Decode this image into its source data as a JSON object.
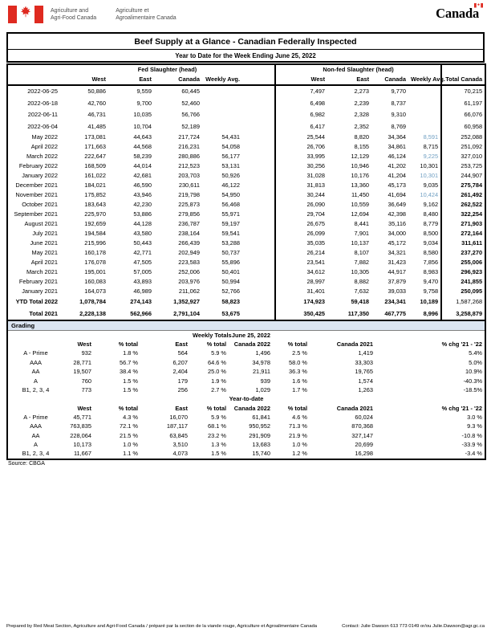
{
  "header": {
    "dept_en_line1": "Agriculture and",
    "dept_en_line2": "Agri-Food Canada",
    "dept_fr_line1": "Agriculture et",
    "dept_fr_line2": "Agroalimentaire Canada",
    "wordmark": "Canada"
  },
  "title": "Beef Supply at a Glance - Canadian Federally Inspected",
  "subtitle": "Year to Date for the Week Ending June 25, 2022",
  "main_table": {
    "group_fed": "Fed Slaughter (head)",
    "group_nonfed": "Non-fed Slaughter (head)",
    "group_total": "Total Canada",
    "col_headers": [
      "West",
      "East",
      "Canada",
      "Weekly Avg.",
      "West",
      "East",
      "Canada",
      "Weekly Avg."
    ],
    "rows": [
      {
        "label": "2022-06-25",
        "cells": [
          "50,886",
          "9,559",
          "60,445",
          "",
          "7,497",
          "2,273",
          "9,770",
          "",
          "70,215"
        ],
        "tall": true
      },
      {
        "label": "2022-06-18",
        "cells": [
          "42,760",
          "9,700",
          "52,460",
          "",
          "6,498",
          "2,239",
          "8,737",
          "",
          "61,197"
        ],
        "tall": true
      },
      {
        "label": "2022-06-11",
        "cells": [
          "46,731",
          "10,035",
          "56,766",
          "",
          "6,982",
          "2,328",
          "9,310",
          "",
          "66,076"
        ],
        "tall": true
      },
      {
        "label": "2022-06-04",
        "cells": [
          "41,485",
          "10,704",
          "52,189",
          "",
          "6,417",
          "2,352",
          "8,769",
          "",
          "60,958"
        ],
        "tall": true
      },
      {
        "label": "May 2022",
        "cells": [
          "173,081",
          "44,643",
          "217,724",
          "54,431",
          "25,544",
          "8,820",
          "34,364",
          "8,591",
          "252,088"
        ],
        "blue_avg": true
      },
      {
        "label": "April 2022",
        "cells": [
          "171,663",
          "44,568",
          "216,231",
          "54,058",
          "26,706",
          "8,155",
          "34,861",
          "8,715",
          "251,092"
        ]
      },
      {
        "label": "March 2022",
        "cells": [
          "222,647",
          "58,239",
          "280,886",
          "56,177",
          "33,995",
          "12,129",
          "46,124",
          "9,225",
          "327,010"
        ],
        "blue_avg": true
      },
      {
        "label": "February 2022",
        "cells": [
          "168,509",
          "44,014",
          "212,523",
          "53,131",
          "30,256",
          "10,946",
          "41,202",
          "10,301",
          "253,725"
        ]
      },
      {
        "label": "January 2022",
        "cells": [
          "161,022",
          "42,681",
          "203,703",
          "50,926",
          "31,028",
          "10,176",
          "41,204",
          "10,301",
          "244,907"
        ],
        "blue_avg": true
      },
      {
        "label": "December 2021",
        "cells": [
          "184,021",
          "46,590",
          "230,611",
          "46,122",
          "31,813",
          "13,360",
          "45,173",
          "9,035",
          "275,784"
        ],
        "bold_total": true
      },
      {
        "label": "November 2021",
        "cells": [
          "175,852",
          "43,946",
          "219,798",
          "54,950",
          "30,244",
          "11,450",
          "41,694",
          "10,424",
          "261,492"
        ],
        "blue_avg": true,
        "bold_total": true
      },
      {
        "label": "October 2021",
        "cells": [
          "183,643",
          "42,230",
          "225,873",
          "56,468",
          "26,090",
          "10,559",
          "36,649",
          "9,162",
          "262,522"
        ],
        "bold_total": true
      },
      {
        "label": "September 2021",
        "cells": [
          "225,970",
          "53,886",
          "279,856",
          "55,971",
          "29,704",
          "12,694",
          "42,398",
          "8,480",
          "322,254"
        ],
        "bold_total": true
      },
      {
        "label": "August 2021",
        "cells": [
          "192,659",
          "44,128",
          "236,787",
          "59,197",
          "26,675",
          "8,441",
          "35,116",
          "8,779",
          "271,903"
        ],
        "bold_total": true
      },
      {
        "label": "July 2021",
        "cells": [
          "194,584",
          "43,580",
          "238,164",
          "59,541",
          "26,099",
          "7,901",
          "34,000",
          "8,500",
          "272,164"
        ],
        "bold_total": true
      },
      {
        "label": "June 2021",
        "cells": [
          "215,996",
          "50,443",
          "266,439",
          "53,288",
          "35,035",
          "10,137",
          "45,172",
          "9,034",
          "311,611"
        ],
        "bold_total": true
      },
      {
        "label": "May 2021",
        "cells": [
          "160,178",
          "42,771",
          "202,949",
          "50,737",
          "26,214",
          "8,107",
          "34,321",
          "8,580",
          "237,270"
        ],
        "bold_total": true
      },
      {
        "label": "April 2021",
        "cells": [
          "176,078",
          "47,505",
          "223,583",
          "55,896",
          "23,541",
          "7,882",
          "31,423",
          "7,856",
          "255,006"
        ],
        "bold_total": true
      },
      {
        "label": "March 2021",
        "cells": [
          "195,001",
          "57,005",
          "252,006",
          "50,401",
          "34,612",
          "10,305",
          "44,917",
          "8,983",
          "296,923"
        ],
        "bold_total": true
      },
      {
        "label": "February 2021",
        "cells": [
          "160,083",
          "43,893",
          "203,976",
          "50,994",
          "28,997",
          "8,882",
          "37,879",
          "9,470",
          "241,855"
        ],
        "bold_total": true
      },
      {
        "label": "January 2021",
        "cells": [
          "164,073",
          "46,989",
          "211,062",
          "52,766",
          "31,401",
          "7,632",
          "39,033",
          "9,758",
          "250,095"
        ],
        "bold_total": true
      },
      {
        "label": "YTD Total 2022",
        "cells": [
          "1,078,784",
          "274,143",
          "1,352,927",
          "58,823",
          "174,923",
          "59,418",
          "234,341",
          "10,189",
          "1,587,268"
        ],
        "bold": true,
        "total_regular": true,
        "tall": true
      },
      {
        "label": "Total 2021",
        "cells": [
          "2,228,138",
          "562,966",
          "2,791,104",
          "53,675",
          "350,425",
          "117,350",
          "467,775",
          "8,996",
          "3,258,879"
        ],
        "bold": true,
        "tall": true
      }
    ]
  },
  "grading": {
    "section_label": "Grading",
    "weekly_super_left": "Weekly Totals",
    "weekly_super_right": "June 25, 2022",
    "col_headers": [
      "West",
      "% total",
      "East",
      "% total",
      "Canada 2022",
      "% total",
      "Canada 2021",
      "% chg '21 - '22"
    ],
    "weekly_rows": [
      {
        "label": "A - Prime",
        "cells": [
          "932",
          "1.8 %",
          "564",
          "5.9 %",
          "1,496",
          "2.5 %",
          "1,419",
          "5.4%"
        ]
      },
      {
        "label": "AAA",
        "cells": [
          "28,771",
          "56.7 %",
          "6,207",
          "64.6 %",
          "34,978",
          "58.0 %",
          "33,303",
          "5.0%"
        ]
      },
      {
        "label": "AA",
        "cells": [
          "19,507",
          "38.4 %",
          "2,404",
          "25.0 %",
          "21,911",
          "36.3 %",
          "19,765",
          "10.9%"
        ]
      },
      {
        "label": "A",
        "cells": [
          "760",
          "1.5 %",
          "179",
          "1.9 %",
          "939",
          "1.6 %",
          "1,574",
          "-40.3%"
        ]
      },
      {
        "label": "B1, 2, 3, 4",
        "cells": [
          "773",
          "1.5 %",
          "256",
          "2.7 %",
          "1,029",
          "1.7 %",
          "1,263",
          "-18.5%"
        ]
      }
    ],
    "ytd_label": "Year-to-date",
    "ytd_rows": [
      {
        "label": "A - Prime",
        "cells": [
          "45,771",
          "4.3 %",
          "16,070",
          "5.9 %",
          "61,841",
          "4.6 %",
          "60,024",
          "3.0 %"
        ]
      },
      {
        "label": "AAA",
        "cells": [
          "763,835",
          "72.1 %",
          "187,117",
          "68.1 %",
          "950,952",
          "71.3 %",
          "870,368",
          "9.3 %"
        ]
      },
      {
        "label": "AA",
        "cells": [
          "228,064",
          "21.5 %",
          "63,845",
          "23.2 %",
          "291,909",
          "21.9 %",
          "327,147",
          "-10.8 %"
        ]
      },
      {
        "label": "A",
        "cells": [
          "10,173",
          "1.0 %",
          "3,510",
          "1.3 %",
          "13,683",
          "1.0 %",
          "20,699",
          "-33.9 %"
        ]
      },
      {
        "label": "B1, 2, 3, 4",
        "cells": [
          "11,667",
          "1.1 %",
          "4,073",
          "1.5 %",
          "15,740",
          "1.2 %",
          "16,298",
          "-3.4 %"
        ]
      }
    ]
  },
  "source": "Source: CBGA",
  "footer": {
    "prepared": "Prepared by Red Meat Section, Agriculture and Agri-Food Canada / préparé par la section de la viande rouge, Agriculture et Agroalimentaire Canada",
    "contact": "Contact: Julie Dawson 613 773 0149 or/ou Julie.Dawson@agr.gc.ca"
  },
  "colors": {
    "accent_blue": "#71a0c3",
    "grading_bar_bg": "#dbe5f1",
    "flag_red": "#df2a20"
  }
}
